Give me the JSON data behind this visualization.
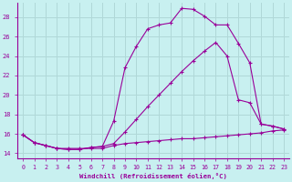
{
  "xlabel": "Windchill (Refroidissement éolien,°C)",
  "bg_color": "#c8f0f0",
  "grid_color": "#b0d8d8",
  "line_color": "#990099",
  "xlim": [
    -0.5,
    23.5
  ],
  "ylim": [
    13.5,
    29.5
  ],
  "xticks": [
    0,
    1,
    2,
    3,
    4,
    5,
    6,
    7,
    8,
    9,
    10,
    11,
    12,
    13,
    14,
    15,
    16,
    17,
    18,
    19,
    20,
    21,
    22,
    23
  ],
  "yticks": [
    14,
    16,
    18,
    20,
    22,
    24,
    26,
    28
  ],
  "line1_x": [
    0,
    1,
    2,
    3,
    4,
    5,
    6,
    7,
    8,
    9,
    10,
    11,
    12,
    13,
    14,
    15,
    16,
    17,
    18,
    19,
    20,
    21,
    22,
    23
  ],
  "line1_y": [
    15.9,
    15.1,
    14.8,
    14.5,
    14.5,
    14.5,
    14.5,
    14.5,
    14.8,
    15.0,
    15.1,
    15.2,
    15.3,
    15.4,
    15.5,
    15.5,
    15.6,
    15.7,
    15.8,
    15.9,
    16.0,
    16.1,
    16.3,
    16.4
  ],
  "line2_x": [
    0,
    1,
    2,
    3,
    4,
    5,
    6,
    7,
    8,
    9,
    10,
    11,
    12,
    13,
    14,
    15,
    16,
    17,
    18,
    19,
    20,
    21,
    22,
    23
  ],
  "line2_y": [
    15.9,
    15.1,
    14.8,
    14.5,
    14.4,
    14.4,
    14.6,
    14.7,
    17.3,
    22.8,
    25.0,
    26.8,
    27.2,
    27.4,
    28.9,
    28.8,
    28.1,
    27.2,
    27.2,
    25.3,
    23.3,
    17.0,
    16.8,
    16.5
  ],
  "line3_x": [
    0,
    1,
    2,
    3,
    4,
    5,
    6,
    7,
    8,
    9,
    10,
    11,
    12,
    13,
    14,
    15,
    16,
    17,
    18,
    19,
    20,
    21,
    22,
    23
  ],
  "line3_y": [
    15.9,
    15.1,
    14.8,
    14.5,
    14.4,
    14.4,
    14.6,
    14.7,
    15.0,
    16.2,
    17.5,
    18.8,
    20.0,
    21.2,
    22.4,
    23.5,
    24.5,
    25.4,
    24.0,
    19.5,
    19.2,
    17.0,
    16.8,
    16.5
  ]
}
